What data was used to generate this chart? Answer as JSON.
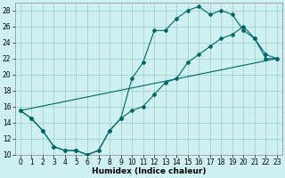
{
  "xlabel": "Humidex (Indice chaleur)",
  "bg_color": "#cff0f0",
  "grid_color": "#99cccc",
  "line_color": "#006666",
  "xlim": [
    -0.5,
    23.5
  ],
  "ylim": [
    10,
    29
  ],
  "xticks": [
    0,
    1,
    2,
    3,
    4,
    5,
    6,
    7,
    8,
    9,
    10,
    11,
    12,
    13,
    14,
    15,
    16,
    17,
    18,
    19,
    20,
    21,
    22,
    23
  ],
  "yticks": [
    10,
    12,
    14,
    16,
    18,
    20,
    22,
    24,
    26,
    28
  ],
  "curve1_x": [
    0,
    1,
    2,
    3,
    4,
    5,
    6,
    7,
    8,
    9,
    10,
    11,
    12,
    13,
    14,
    15,
    16,
    17,
    18,
    19,
    20,
    21,
    22,
    23
  ],
  "curve1_y": [
    15.5,
    14.5,
    13.0,
    11.0,
    10.5,
    10.5,
    10.0,
    10.5,
    13.0,
    14.5,
    19.5,
    21.5,
    25.5,
    25.5,
    27.0,
    28.0,
    28.5,
    27.5,
    28.0,
    27.5,
    25.5,
    24.5,
    22.0,
    22.0
  ],
  "curve2_x": [
    0,
    1,
    2,
    3,
    4,
    5,
    6,
    7,
    8,
    9,
    10,
    11,
    12,
    13,
    14,
    15,
    16,
    17,
    18,
    19,
    20,
    21,
    22,
    23
  ],
  "curve2_y": [
    15.5,
    14.5,
    13.0,
    11.0,
    10.5,
    10.5,
    10.0,
    10.5,
    13.0,
    14.5,
    15.5,
    16.0,
    17.5,
    19.0,
    19.5,
    21.5,
    22.5,
    23.5,
    24.5,
    25.0,
    26.0,
    24.5,
    22.5,
    22.0
  ],
  "line_x": [
    0,
    23
  ],
  "line_y": [
    15.5,
    22.0
  ]
}
